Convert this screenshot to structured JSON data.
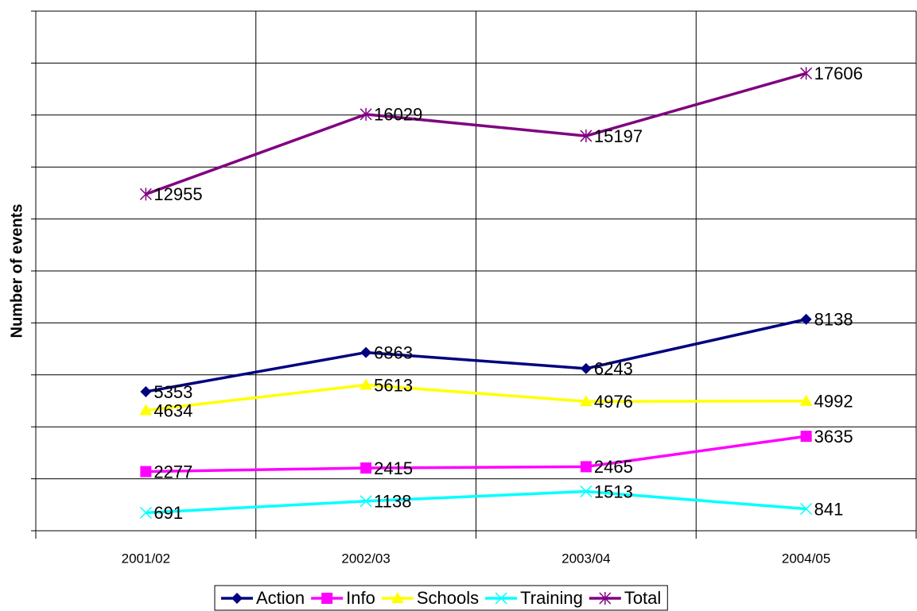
{
  "chart_data": {
    "type": "line",
    "y_label": "Number of events",
    "categories": [
      "2001/02",
      "2002/03",
      "2003/04",
      "2004/05"
    ],
    "series": [
      {
        "name": "Action",
        "color": "#000080",
        "marker": "diamond",
        "values": [
          5353,
          6863,
          6243,
          8138
        ]
      },
      {
        "name": "Info",
        "color": "#ff00ff",
        "marker": "square",
        "values": [
          2277,
          2415,
          2465,
          3635
        ]
      },
      {
        "name": "Schools",
        "color": "#ffff00",
        "marker": "triangle",
        "values": [
          4634,
          5613,
          4976,
          4992
        ]
      },
      {
        "name": "Training",
        "color": "#00ffff",
        "marker": "x",
        "values": [
          691,
          1138,
          1513,
          841
        ]
      },
      {
        "name": "Total",
        "color": "#800080",
        "marker": "asterisk",
        "values": [
          12955,
          16029,
          15197,
          17606
        ]
      }
    ],
    "ylim": [
      0,
      20000
    ],
    "yticks": [
      0,
      2000,
      4000,
      6000,
      8000,
      10000,
      12000,
      14000,
      16000,
      18000,
      20000
    ],
    "grid": true,
    "legend": "bottom"
  }
}
